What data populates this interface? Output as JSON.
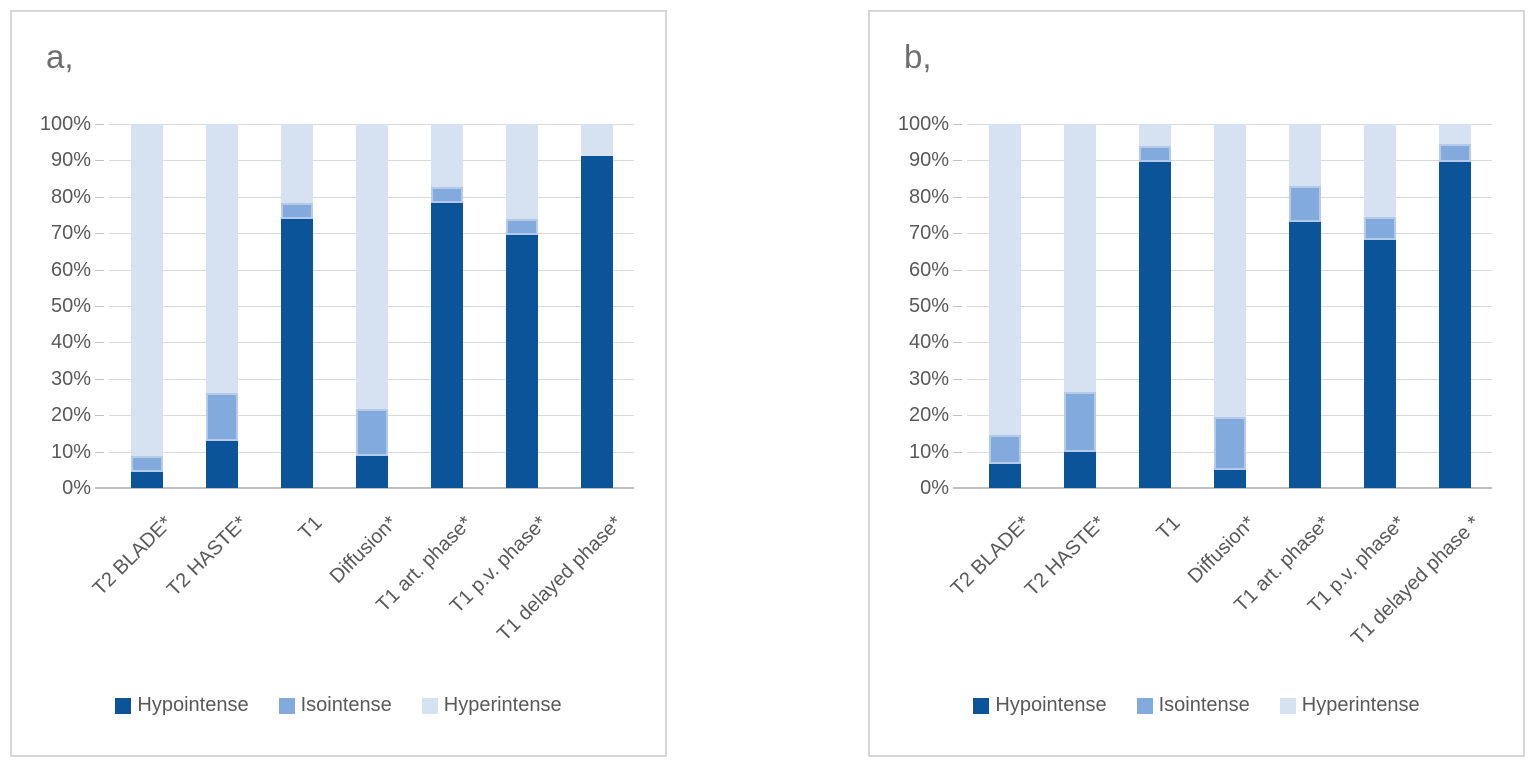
{
  "figure": {
    "background": "#ffffff",
    "panel_border_color": "#d6d6d6",
    "grid_color": "#d9d9d9",
    "axis_color": "#bfbfbf",
    "text_color": "#595959",
    "title_color": "#6e6e6e"
  },
  "chart_data": [
    {
      "type": "bar",
      "stacked": true,
      "panel_label": "a,",
      "categories": [
        "T2 BLADE*",
        "T2 HASTE*",
        "T1",
        "Diffusion*",
        "T1 art. phase*",
        "T1 p.v. phase*",
        "T1 delayed phase*"
      ],
      "series": [
        {
          "name": "Hypointense",
          "color": "#0b5499",
          "values": [
            4.3,
            13.0,
            73.9,
            8.7,
            78.3,
            69.6,
            91.3
          ]
        },
        {
          "name": "Isointense",
          "color": "#82aadc",
          "values": [
            4.4,
            13.0,
            4.4,
            13.0,
            4.3,
            4.3,
            0.0
          ]
        },
        {
          "name": "Hyperintense",
          "color": "#d6e2f2",
          "values": [
            91.3,
            74.0,
            21.7,
            78.3,
            17.4,
            26.1,
            8.7
          ]
        }
      ],
      "yticks": [
        "0%",
        "10%",
        "20%",
        "30%",
        "40%",
        "50%",
        "60%",
        "70%",
        "80%",
        "90%",
        "100%"
      ],
      "ylim": [
        0,
        100
      ],
      "grid": "horizontal",
      "legend_position": "bottom",
      "legend": [
        "Hypointense",
        "Isointense",
        "Hyperintense"
      ]
    },
    {
      "type": "bar",
      "stacked": true,
      "panel_label": "b,",
      "categories": [
        "T2 BLADE*",
        "T2 HASTE*",
        "T1",
        "Diffusion*",
        "T1 art. phase*",
        "T1 p.v. phase*",
        "T1 delayed phase *"
      ],
      "series": [
        {
          "name": "Hypointense",
          "color": "#0b5499",
          "values": [
            6.5,
            10.0,
            89.5,
            5.0,
            73.0,
            68.0,
            89.5
          ]
        },
        {
          "name": "Isointense",
          "color": "#82aadc",
          "values": [
            8.0,
            16.5,
            4.5,
            14.5,
            10.0,
            6.5,
            5.0
          ]
        },
        {
          "name": "Hyperintense",
          "color": "#d6e2f2",
          "values": [
            85.5,
            73.5,
            6.0,
            80.5,
            17.0,
            25.5,
            5.5
          ]
        }
      ],
      "yticks": [
        "0%",
        "10%",
        "20%",
        "30%",
        "40%",
        "50%",
        "60%",
        "70%",
        "80%",
        "90%",
        "100%"
      ],
      "ylim": [
        0,
        100
      ],
      "grid": "horizontal",
      "legend_position": "bottom",
      "legend": [
        "Hypointense",
        "Isointense",
        "Hyperintense"
      ]
    }
  ]
}
